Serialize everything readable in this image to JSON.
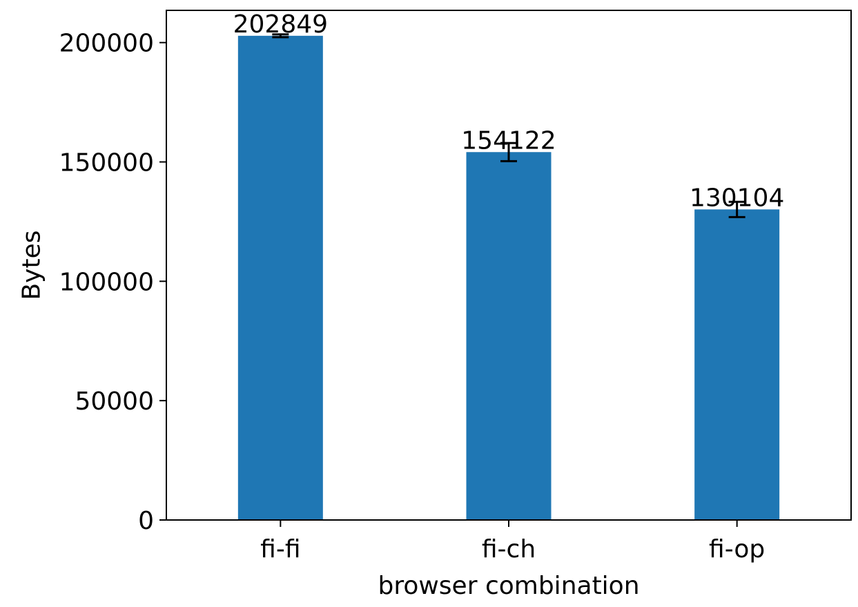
{
  "chart_data": {
    "type": "bar",
    "categories": [
      "fi-fi",
      "fi-ch",
      "fi-op"
    ],
    "values": [
      202849,
      154122,
      130104
    ],
    "errors": [
      600,
      3800,
      3200
    ],
    "data_labels": [
      "202849",
      "154122",
      "130104"
    ],
    "title": "",
    "xlabel": "browser combination",
    "ylabel": "Bytes",
    "ylim": [
      0,
      213500
    ],
    "yticks": [
      0,
      50000,
      100000,
      150000,
      200000
    ],
    "ytick_labels": [
      "0",
      "50000",
      "100000",
      "150000",
      "200000"
    ],
    "grid": false,
    "legend": "none",
    "colors": {
      "bar": "#1f77b4",
      "error_bar": "#000000",
      "axes": "#000000"
    }
  }
}
